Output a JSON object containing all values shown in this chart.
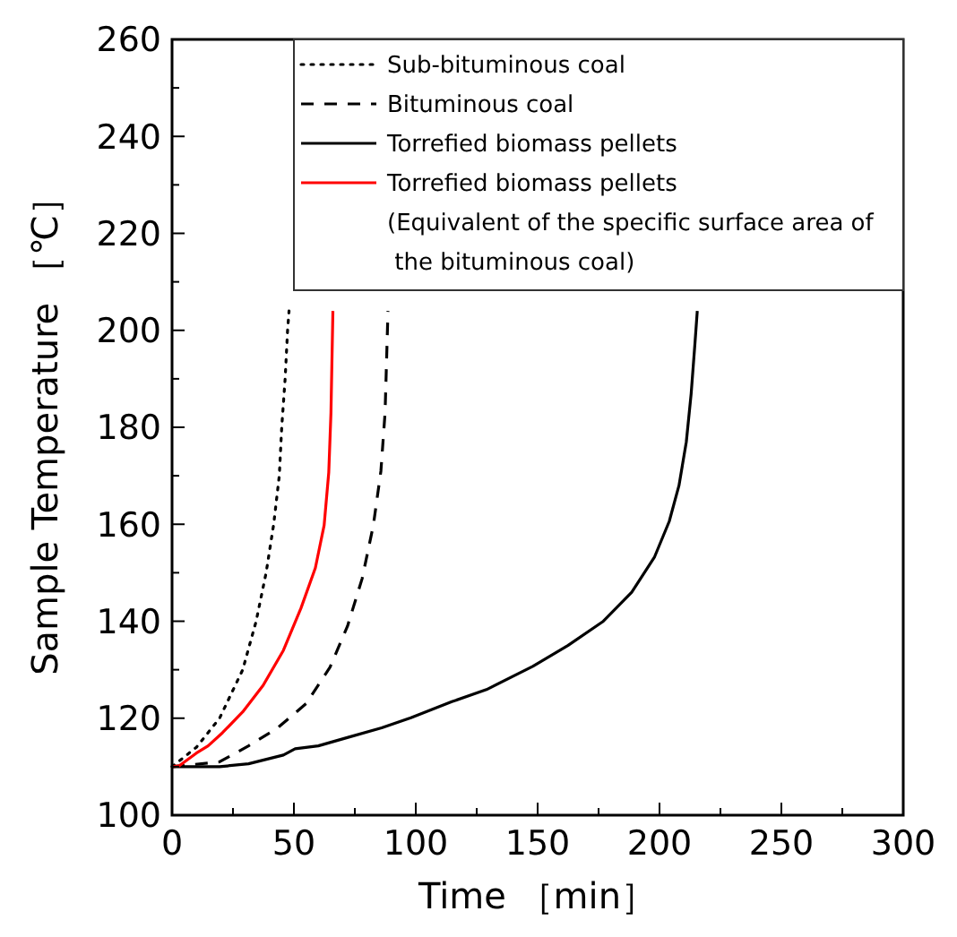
{
  "chart_data": {
    "type": "line",
    "xlabel": "Time ［min］",
    "ylabel": "Sample Temperature ［℃］",
    "xlim": [
      0,
      300
    ],
    "ylim": [
      100,
      260
    ],
    "xticks": [
      0,
      {
        "value": 25,
        "label": null
      },
      50,
      {
        "value": 75,
        "label": null
      },
      100,
      {
        "value": 125,
        "label": null
      },
      150,
      {
        "value": 175,
        "label": null
      },
      200,
      {
        "value": 225,
        "label": null
      },
      250,
      {
        "value": 275,
        "label": null
      },
      300
    ],
    "yticks": [
      100,
      {
        "value": 110,
        "label": null
      },
      120,
      {
        "value": 130,
        "label": null
      },
      140,
      {
        "value": 150,
        "label": null
      },
      160,
      {
        "value": 170,
        "label": null
      },
      180,
      {
        "value": 190,
        "label": null
      },
      200,
      {
        "value": 210,
        "label": null
      },
      220,
      {
        "value": 230,
        "label": null
      },
      240,
      {
        "value": 250,
        "label": null
      },
      260
    ],
    "grid": false,
    "legend": "top right",
    "marker": "none",
    "series": [
      {
        "name": "Sub-bituminous coal",
        "color": "#000000",
        "line_style": "dotted",
        "x": [
          0,
          10,
          19.5,
          29,
          34.5,
          38.6,
          41.7,
          44,
          45,
          46.4,
          47.4,
          48
        ],
        "values": [
          110,
          114,
          120,
          130,
          140,
          150,
          160,
          170,
          180,
          190,
          200,
          204
        ]
      },
      {
        "name": "Bituminous coal",
        "color": "#000000",
        "line_style": "dashed",
        "x": [
          0,
          19.5,
          31.4,
          43.3,
          55,
          64.8,
          72,
          78,
          82.6,
          85.7,
          87.4,
          88.6
        ],
        "values": [
          110,
          111,
          114.3,
          118,
          123,
          130.5,
          139,
          148.8,
          159.8,
          171,
          183,
          204
        ]
      },
      {
        "name": "Torrefied biomass pellets",
        "color": "#000000",
        "line_style": "solid",
        "x": [
          0,
          19.5,
          31.4,
          45.7,
          50.5,
          60,
          71.9,
          86,
          98,
          114.8,
          129,
          148,
          162.4,
          176.7,
          188.6,
          198,
          204,
          208,
          211,
          213,
          214.5,
          215.5
        ],
        "values": [
          110,
          110,
          110.6,
          112.4,
          113.7,
          114.3,
          116,
          118,
          120.1,
          123.4,
          125.9,
          130.7,
          135,
          139.9,
          146,
          153.3,
          160.6,
          168,
          177,
          187,
          197,
          204
        ]
      },
      {
        "name": "Torrefied biomass pellets\n(Equivalent of the specific surface area of\n the bituminous coal)",
        "color": "#ff0000",
        "line_style": "solid",
        "x": [
          0,
          3,
          10,
          14.8,
          20.7,
          29,
          37.4,
          45.7,
          52.9,
          58.8,
          62.4,
          64.3,
          65.2,
          66
        ],
        "values": [
          110,
          110.2,
          112.8,
          114.3,
          117,
          121.3,
          126.8,
          134,
          142.7,
          151,
          159.8,
          170.7,
          183,
          204
        ]
      }
    ]
  }
}
